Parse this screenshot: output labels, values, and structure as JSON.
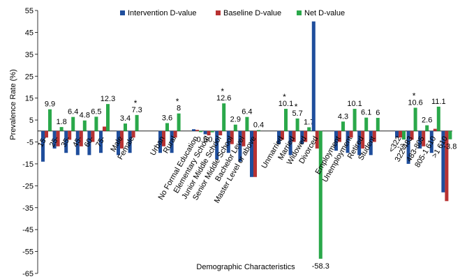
{
  "chart_data": {
    "type": "bar",
    "title": "",
    "xlabel": "Demographic Characteristics",
    "ylabel": "Prevalence Rate (%)",
    "ylim": [
      -65,
      55
    ],
    "yticks": [
      55,
      45,
      35,
      25,
      15,
      5,
      -5,
      -15,
      -25,
      -35,
      -45,
      -55,
      -65
    ],
    "grid": false,
    "legend_position": "top",
    "series": [
      {
        "name": "Intervention D-value",
        "color": "#1f4e9c"
      },
      {
        "name": "Baseline D-value",
        "color": "#b83232"
      },
      {
        "name": "Net D-value",
        "color": "#2aa84a"
      }
    ],
    "categories": [
      "15-",
      "25-",
      "35-",
      "45-",
      "60-",
      "75-",
      "Male",
      "Female",
      "Urban",
      "Rural",
      "No Formal Education",
      "Elementary School",
      "Junior Middle School",
      "Senior Middle School",
      "Bachelor Level",
      "Master Level or above",
      "Unmarried",
      "Married",
      "Widowed",
      "Divorced",
      "Employment",
      "Unemployment",
      "Retired",
      "Student",
      "<322",
      "322-483",
      "483-805",
      "805-1 610",
      ">1 610"
    ],
    "groups": [
      {
        "size": 6
      },
      {
        "size": 2
      },
      {
        "size": 2
      },
      {
        "size": 6
      },
      {
        "size": 4
      },
      {
        "size": 4
      },
      {
        "size": 5
      }
    ],
    "values": {
      "intervention": [
        -14,
        -8,
        -10,
        -11,
        -11,
        -10,
        -11,
        -10,
        -10,
        -10,
        0.8,
        -1.5,
        -13,
        -10,
        -14,
        -21,
        -6,
        -11,
        -6,
        50,
        -9,
        -10,
        -11,
        -11,
        -3,
        -15,
        -8,
        -10,
        -28
      ],
      "baseline": [
        -3,
        -7,
        -4,
        -7,
        -5,
        2,
        -8,
        -3,
        -7,
        -3,
        0.5,
        -2,
        -2,
        -6,
        -7,
        -21,
        -4,
        -5,
        -5,
        -8,
        -5,
        -3,
        -8,
        -5,
        -3,
        -4,
        -7,
        1,
        -32
      ],
      "net": [
        9.9,
        1.8,
        6.4,
        4.8,
        6.5,
        12.3,
        3.4,
        7.3,
        3.6,
        8,
        -0.5,
        -0.6,
        12.6,
        2.9,
        6.4,
        0.4,
        10.1,
        5.7,
        1.7,
        -58.3,
        4.3,
        10.1,
        6.1,
        6,
        -3.9,
        10.6,
        2.6,
        11.1,
        -3.8
      ]
    },
    "net_labels": [
      "9.9",
      "1.8",
      "6.4",
      "4.8",
      "6.5",
      "12.3",
      "3.4",
      "7.3",
      "3.6",
      "8",
      "-0.5",
      "-0.6",
      "12.6",
      "2.9",
      "6.4",
      "0.4",
      "10.1",
      "5.7",
      "1.7",
      "-58.3",
      "4.3",
      "10.1",
      "6.1",
      "6",
      "-3.9",
      "10.6",
      "2.6",
      "11.1",
      "-3.8"
    ],
    "significant": [
      false,
      false,
      false,
      false,
      false,
      false,
      false,
      true,
      false,
      true,
      false,
      false,
      true,
      false,
      false,
      false,
      true,
      true,
      false,
      false,
      false,
      false,
      false,
      false,
      false,
      true,
      false,
      false,
      false
    ],
    "significance_marker": "*"
  }
}
